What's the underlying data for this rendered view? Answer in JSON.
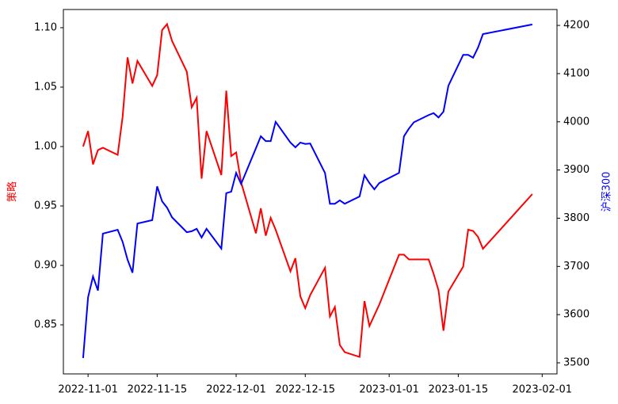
{
  "chart_data": {
    "type": "line",
    "ylabel": "策略",
    "y2label": "沪深300",
    "x": [
      "2022-10-31",
      "2022-11-01",
      "2022-11-02",
      "2022-11-03",
      "2022-11-04",
      "2022-11-07",
      "2022-11-08",
      "2022-11-09",
      "2022-11-10",
      "2022-11-11",
      "2022-11-14",
      "2022-11-15",
      "2022-11-16",
      "2022-11-17",
      "2022-11-18",
      "2022-11-21",
      "2022-11-22",
      "2022-11-23",
      "2022-11-24",
      "2022-11-25",
      "2022-11-28",
      "2022-11-29",
      "2022-11-30",
      "2022-12-01",
      "2022-12-02",
      "2022-12-05",
      "2022-12-06",
      "2022-12-07",
      "2022-12-08",
      "2022-12-09",
      "2022-12-12",
      "2022-12-13",
      "2022-12-14",
      "2022-12-15",
      "2022-12-16",
      "2022-12-19",
      "2022-12-20",
      "2022-12-21",
      "2022-12-22",
      "2022-12-23",
      "2022-12-26",
      "2022-12-27",
      "2022-12-28",
      "2022-12-29",
      "2022-12-30",
      "2023-01-03",
      "2023-01-04",
      "2023-01-05",
      "2023-01-06",
      "2023-01-09",
      "2023-01-10",
      "2023-01-11",
      "2023-01-12",
      "2023-01-13",
      "2023-01-16",
      "2023-01-17",
      "2023-01-18",
      "2023-01-19",
      "2023-01-20",
      "2023-01-30"
    ],
    "series": [
      {
        "name": "策略",
        "color": "#ff0000",
        "axis": "y",
        "values": [
          1.0,
          1.013,
          0.985,
          0.997,
          0.999,
          0.993,
          1.025,
          1.075,
          1.053,
          1.072,
          1.051,
          1.06,
          1.098,
          1.103,
          1.089,
          1.063,
          1.033,
          1.041,
          0.973,
          1.013,
          0.976,
          1.047,
          0.992,
          0.995,
          0.97,
          0.927,
          0.948,
          0.925,
          0.94,
          0.93,
          0.895,
          0.906,
          0.874,
          0.864,
          0.875,
          0.898,
          0.857,
          0.865,
          0.833,
          0.827,
          0.823,
          0.87,
          0.849,
          0.858,
          0.867,
          0.909,
          0.909,
          0.905,
          0.905,
          0.905,
          0.893,
          0.879,
          0.845,
          0.878,
          0.899,
          0.93,
          0.929,
          0.924,
          0.914,
          0.96
        ]
      },
      {
        "name": "沪深300",
        "color": "#0000ff",
        "axis": "y2",
        "values": [
          3510,
          3636,
          3679,
          3650,
          3768,
          3776,
          3751,
          3714,
          3687,
          3789,
          3796,
          3866,
          3835,
          3822,
          3802,
          3771,
          3773,
          3778,
          3760,
          3778,
          3737,
          3852,
          3855,
          3894,
          3871,
          3945,
          3970,
          3960,
          3960,
          4000,
          3957,
          3947,
          3957,
          3954,
          3955,
          3894,
          3830,
          3830,
          3837,
          3830,
          3845,
          3889,
          3873,
          3860,
          3873,
          3894,
          3970,
          3986,
          3999,
          4014,
          4018,
          4009,
          4021,
          4075,
          4139,
          4139,
          4133,
          4154,
          4182,
          4202
        ]
      }
    ],
    "xlim": [
      "2022-10-27",
      "2023-02-04"
    ],
    "xticks": [
      "2022-11-01",
      "2022-11-15",
      "2022-12-01",
      "2022-12-15",
      "2023-01-01",
      "2023-01-15",
      "2023-02-01"
    ],
    "ylim": [
      0.8087,
      1.1153
    ],
    "yticks": [
      0.85,
      {
        "value": 0.9,
        "label": "0.90"
      },
      0.95,
      {
        "value": 1,
        "label": "1.00"
      },
      1.05,
      {
        "value": 1.1,
        "label": "1.10"
      }
    ],
    "y2lim": [
      3477,
      4233
    ],
    "y2ticks": [
      3500,
      3600,
      3700,
      3800,
      3900,
      4000,
      4100,
      4200
    ]
  }
}
